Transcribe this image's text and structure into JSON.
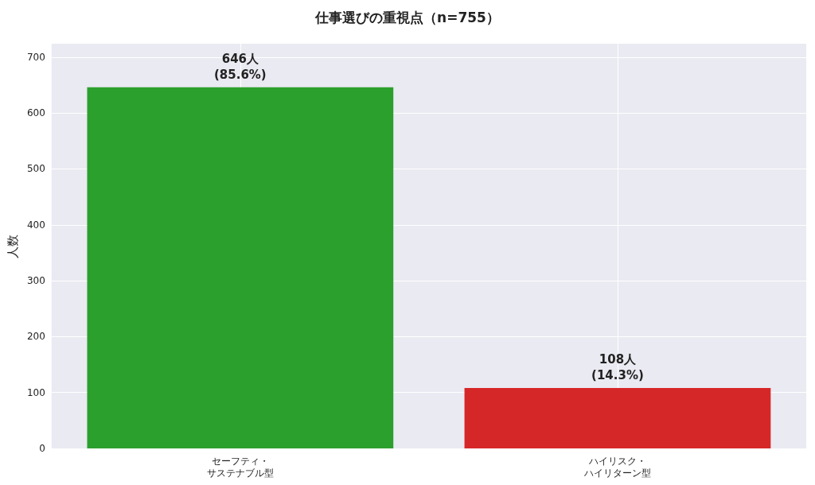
{
  "chart_data": {
    "type": "bar",
    "title": "仕事選びの重視点（n=755）",
    "ylabel": "人数",
    "categories": [
      "セーフティ・サステナブル型",
      "ハイリスク・ハイリターン型"
    ],
    "values": [
      646,
      108
    ],
    "colors": [
      "#2ca02c",
      "#d62728"
    ],
    "value_labels": [
      "646人\n(85.6%)",
      "108人\n(14.3%)"
    ],
    "ylim": [
      0,
      724
    ],
    "yticks": [
      0,
      100,
      200,
      300,
      400,
      500,
      600,
      700
    ],
    "grid": true
  }
}
